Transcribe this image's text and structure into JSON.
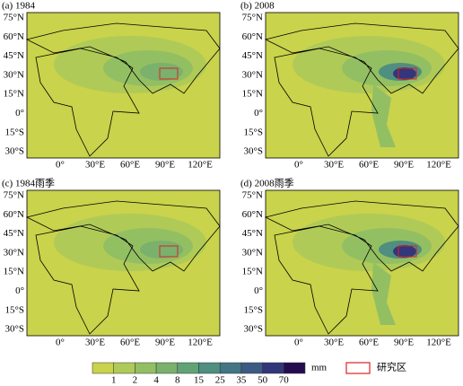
{
  "panels": [
    {
      "title": "(a) 1984"
    },
    {
      "title": "(b) 2008"
    },
    {
      "title": "(c) 1984雨季"
    },
    {
      "title": "(d) 2008雨季"
    }
  ],
  "lat_labels": [
    "75°N",
    "60°N",
    "45°N",
    "30°N",
    "15°N",
    "0°",
    "15°S",
    "30°S"
  ],
  "lon_labels": [
    "0°",
    "30°E",
    "60°E",
    "90°E",
    "120°E"
  ],
  "colorbar": {
    "labels": [
      "1",
      "2",
      "4",
      "8",
      "15",
      "25",
      "35",
      "50",
      "70"
    ],
    "unit": "mm",
    "colors": [
      "#c9d34b",
      "#b0ca58",
      "#93bf63",
      "#79b16d",
      "#62a277",
      "#4f8f7f",
      "#437683",
      "#3c5b84",
      "#33367a",
      "#240c4f"
    ]
  },
  "legend": {
    "label": "研究区"
  }
}
